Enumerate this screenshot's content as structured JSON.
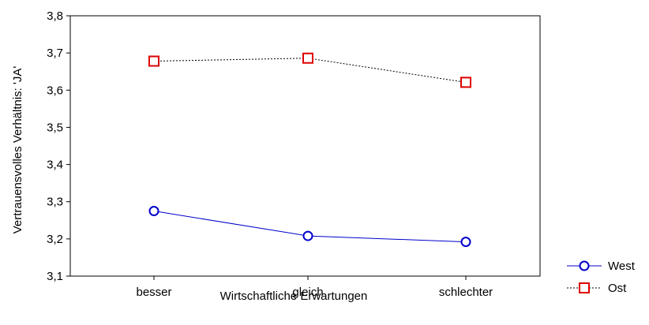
{
  "chart_data": {
    "type": "line",
    "categories": [
      "besser",
      "gleich",
      "schlechter"
    ],
    "series": [
      {
        "name": "West",
        "values": [
          3.275,
          3.208,
          3.192
        ],
        "color": "#0000cc",
        "marker": "circle",
        "line": "solid"
      },
      {
        "name": "Ost",
        "values": [
          3.678,
          3.686,
          3.621
        ],
        "color": "#dd0000",
        "marker": "square",
        "line": "dotted"
      }
    ],
    "title": "",
    "xlabel": "Wirtschaftliche Erwartungen",
    "ylabel": "Vertrauensvolles Verhältnis: 'JA'",
    "ylim": [
      3.1,
      3.8
    ],
    "yticks": [
      "3,1",
      "3,2",
      "3,3",
      "3,4",
      "3,5",
      "3,6",
      "3,7",
      "3,8"
    ],
    "grid": false,
    "legend": "bottom-right"
  }
}
